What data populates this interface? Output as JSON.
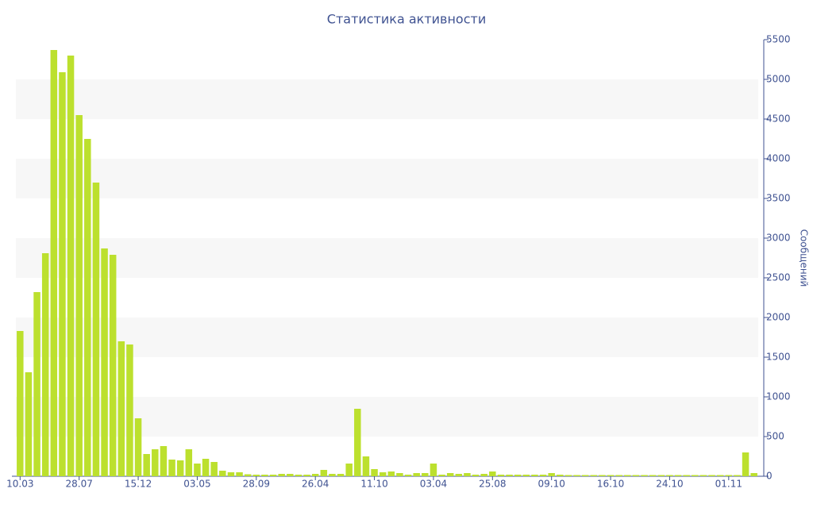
{
  "chart_data": {
    "type": "bar",
    "title": "Статистика активности",
    "y_label": "Сообщений",
    "categories": [
      "10.03",
      null,
      null,
      null,
      null,
      null,
      null,
      "28.07",
      null,
      null,
      null,
      null,
      null,
      null,
      "15.12",
      null,
      null,
      null,
      null,
      null,
      null,
      "03.05",
      null,
      null,
      null,
      null,
      null,
      null,
      "28.09",
      null,
      null,
      null,
      null,
      null,
      null,
      "26.04",
      null,
      null,
      null,
      null,
      null,
      null,
      "11.10",
      null,
      null,
      null,
      null,
      null,
      null,
      "03.04",
      null,
      null,
      null,
      null,
      null,
      null,
      "25.08",
      null,
      null,
      null,
      null,
      null,
      null,
      "09.10",
      null,
      null,
      null,
      null,
      null,
      null,
      "16.10",
      null,
      null,
      null,
      null,
      null,
      null,
      "24.10",
      null,
      null,
      null,
      null,
      null,
      null,
      "01.11",
      null,
      null,
      null
    ],
    "values": [
      1830,
      1310,
      2320,
      2810,
      5370,
      5090,
      5300,
      4550,
      4250,
      3700,
      2870,
      2790,
      1700,
      1660,
      730,
      280,
      340,
      380,
      210,
      200,
      340,
      160,
      220,
      180,
      70,
      50,
      50,
      25,
      20,
      20,
      20,
      30,
      30,
      20,
      20,
      30,
      80,
      30,
      30,
      160,
      850,
      250,
      90,
      50,
      60,
      40,
      20,
      40,
      40,
      160,
      20,
      40,
      30,
      40,
      20,
      30,
      60,
      20,
      20,
      20,
      20,
      20,
      20,
      40,
      20,
      15,
      15,
      15,
      15,
      15,
      15,
      15,
      15,
      15,
      15,
      15,
      15,
      15,
      15,
      15,
      15,
      15,
      15,
      15,
      15,
      15,
      300,
      40
    ],
    "color": "#bce02e",
    "ylim": [
      0,
      5500
    ],
    "yticks": [
      0,
      500,
      1000,
      1500,
      2000,
      2500,
      3000,
      3500,
      4000,
      4500,
      5000,
      5500
    ],
    "grid": "bands",
    "y_axis_side": "right"
  }
}
